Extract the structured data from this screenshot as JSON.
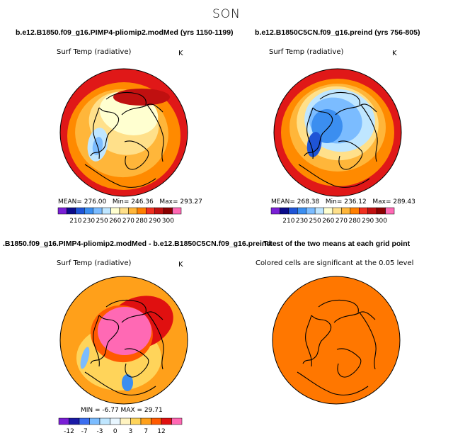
{
  "figure": {
    "season": "SON",
    "colors": {
      "abs_palette": [
        "#7a1fd6",
        "#0b0b8a",
        "#1f54d6",
        "#3b8ef0",
        "#7bbcff",
        "#bfe6ff",
        "#ffffd0",
        "#ffe08a",
        "#ffb63a",
        "#ff7f00",
        "#f03020",
        "#c01010",
        "#8b0000",
        "#ff69b4"
      ],
      "diff_palette": [
        "#7a1fd6",
        "#1a1aa6",
        "#3b6ef0",
        "#7bbcff",
        "#bfe6ff",
        "#e8f6ff",
        "#fff3c0",
        "#ffd45a",
        "#ffa01a",
        "#ff5a00",
        "#e01010",
        "#ff69b4"
      ],
      "ttest_fill": "#ff7700"
    }
  },
  "panels": {
    "p1": {
      "title": "b.e12.B1850.f09_g16.PIMP4-pliomip2.modMed (yrs 1150-1199)",
      "variable": "Surf Temp (radiative)",
      "units": "K",
      "stats": {
        "mean_label": "MEAN=",
        "mean": "276.00",
        "min_label": "Min=",
        "min": "246.36",
        "max_label": "Max=",
        "max": "293.27"
      }
    },
    "p2": {
      "title": "b.e12.B1850C5CN.f09_g16.preind (yrs 756-805)",
      "variable": "Surf Temp (radiative)",
      "units": "K",
      "stats": {
        "mean_label": "MEAN=",
        "mean": "268.38",
        "min_label": "Min=",
        "min": "236.12",
        "max_label": "Max=",
        "max": "289.43"
      }
    },
    "p3": {
      "title": ".B1850.f09_g16.PIMP4-pliomip2.modMed - b.e12.B1850C5CN.f09_g16.preind",
      "variable": "Surf Temp (radiative)",
      "units": "K",
      "stats_text": "MIN = -6.77 MAX = 29.71"
    },
    "p4": {
      "title": "T-test of the two means at each grid point",
      "note": "Colored cells are significant at the 0.05 level"
    }
  },
  "chart_data": [
    {
      "type": "heatmap",
      "title": "b.e12.B1850.f09_g16.PIMP4-pliomip2.modMed (yrs 1150-1199)",
      "projection": "north polar stereographic",
      "variable": "Surf Temp (radiative)",
      "units": "K",
      "mean": 276.0,
      "min": 246.36,
      "max": 293.27,
      "colorbar_ticks": [
        210,
        230,
        250,
        260,
        270,
        280,
        290,
        300
      ]
    },
    {
      "type": "heatmap",
      "title": "b.e12.B1850C5CN.f09_g16.preind (yrs 756-805)",
      "projection": "north polar stereographic",
      "variable": "Surf Temp (radiative)",
      "units": "K",
      "mean": 268.38,
      "min": 236.12,
      "max": 289.43,
      "colorbar_ticks": [
        210,
        230,
        250,
        260,
        270,
        280,
        290,
        300
      ]
    },
    {
      "type": "heatmap",
      "title": ".B1850.f09_g16.PIMP4-pliomip2.modMed - b.e12.B1850C5CN.f09_g16.preind",
      "projection": "north polar stereographic",
      "variable": "Surf Temp (radiative)",
      "units": "K",
      "min": -6.77,
      "max": 29.71,
      "colorbar_ticks": [
        -12,
        -7,
        -3,
        0,
        3,
        7,
        12
      ]
    },
    {
      "type": "heatmap",
      "title": "T-test of the two means at each grid point",
      "projection": "north polar stereographic",
      "note": "Colored cells are significant at the 0.05 level",
      "significance_level": 0.05
    }
  ]
}
